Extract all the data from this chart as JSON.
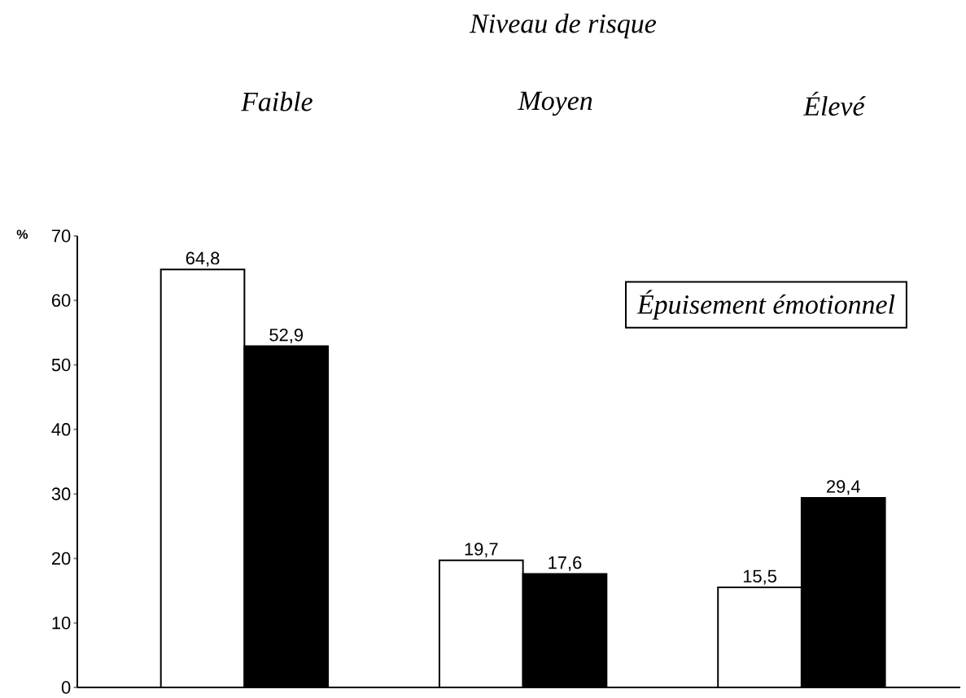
{
  "chart_data": {
    "type": "bar",
    "title": "Niveau de risque",
    "ylabel": "%",
    "categories": [
      "Faible",
      "Moyen",
      "Élevé"
    ],
    "series": [
      {
        "color": "#ffffff",
        "values": [
          64.8,
          19.7,
          15.5
        ],
        "value_labels": [
          "64,8",
          "19,7",
          "15,5"
        ]
      },
      {
        "color": "#000000",
        "values": [
          52.9,
          17.6,
          29.4
        ],
        "value_labels": [
          "52,9",
          "17,6",
          "29,4"
        ]
      }
    ],
    "ylim": [
      0,
      70
    ],
    "yticks": [
      0,
      10,
      20,
      30,
      40,
      50,
      60,
      70
    ],
    "annotations": [
      "Épuisement émotionnel"
    ],
    "grid": false
  }
}
